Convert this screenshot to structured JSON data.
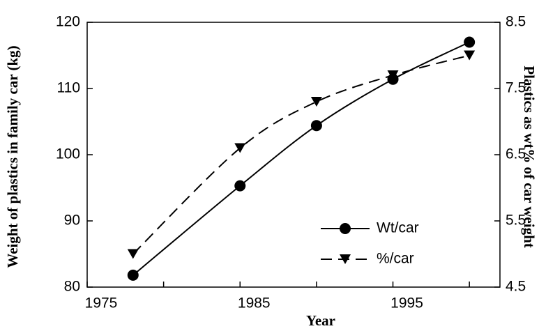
{
  "chart_data": {
    "type": "line",
    "xlabel": "Year",
    "ylabel": "Weight of plastics in family car (kg)",
    "y2label": "Plastics as wt% of car weight",
    "x": [
      1978,
      1985,
      1990,
      1995,
      2000
    ],
    "series": [
      {
        "name": "Wt/car",
        "color": "#000000",
        "marker": "circle",
        "dash": "solid",
        "values": [
          81.8,
          95.3,
          104.4,
          111.4,
          117.0
        ]
      },
      {
        "name": "%/car",
        "color": "#000000",
        "marker": "triangle-down",
        "dash": "dashed",
        "axis": "y2",
        "values": [
          5.0,
          6.6,
          7.3,
          7.7,
          8.0
        ]
      }
    ],
    "xlim": [
      1975,
      2002
    ],
    "xticks": [
      1975,
      1985,
      1995
    ],
    "xminor_ticks": [
      1980,
      1990,
      2000
    ],
    "ylim": [
      80,
      120
    ],
    "yticks": [
      80,
      90,
      100,
      110,
      120
    ],
    "y2lim": [
      4.5,
      8.5
    ],
    "y2ticks": [
      4.5,
      5.5,
      6.5,
      7.5,
      8.5
    ],
    "legend": "lower right",
    "grid": false
  }
}
